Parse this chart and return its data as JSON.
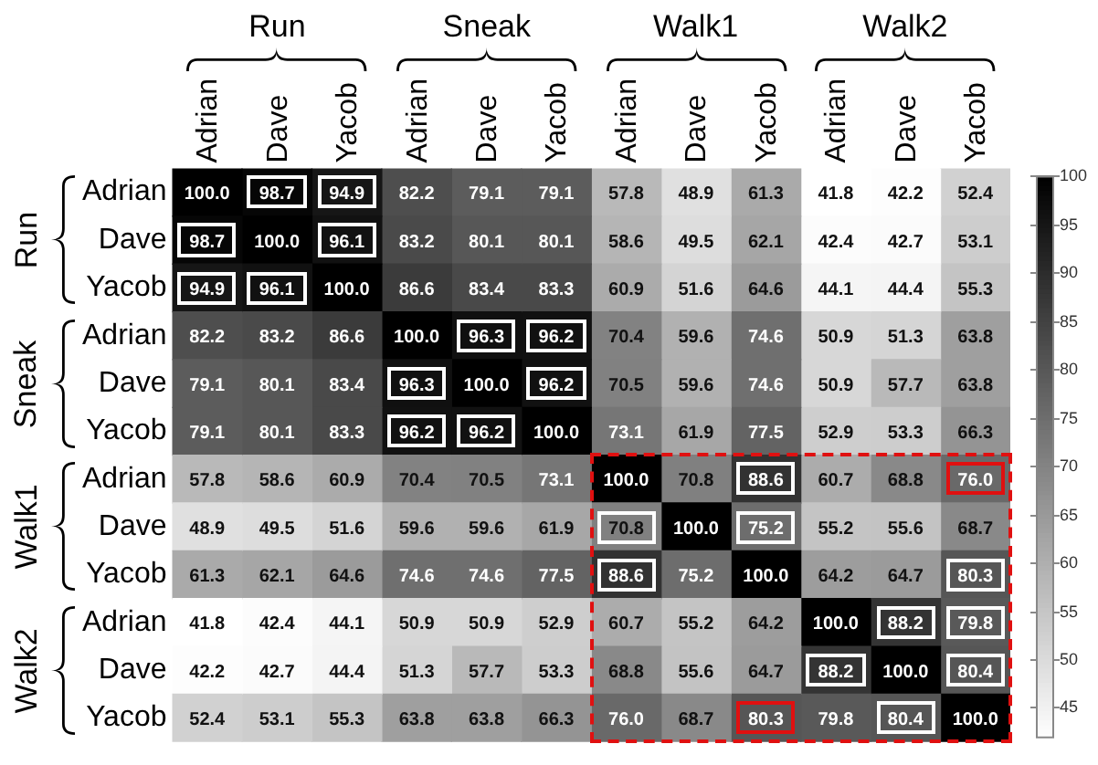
{
  "chart_data": {
    "type": "heatmap",
    "categories": [
      "Adrian",
      "Dave",
      "Yacob",
      "Adrian",
      "Dave",
      "Yacob",
      "Adrian",
      "Dave",
      "Yacob",
      "Adrian",
      "Dave",
      "Yacob"
    ],
    "y_categories": [
      "Adrian",
      "Dave",
      "Yacob",
      "Adrian",
      "Dave",
      "Yacob",
      "Adrian",
      "Dave",
      "Yacob",
      "Adrian",
      "Dave",
      "Yacob"
    ],
    "cells": [
      [
        100.0,
        98.7,
        94.9,
        82.2,
        79.1,
        79.1,
        57.8,
        48.9,
        61.3,
        41.8,
        42.2,
        52.4
      ],
      [
        98.7,
        100.0,
        96.1,
        83.2,
        80.1,
        80.1,
        58.6,
        49.5,
        62.1,
        42.4,
        42.7,
        53.1
      ],
      [
        94.9,
        96.1,
        100.0,
        86.6,
        83.4,
        83.3,
        60.9,
        51.6,
        64.6,
        44.1,
        44.4,
        55.3
      ],
      [
        82.2,
        83.2,
        86.6,
        100.0,
        96.3,
        96.2,
        70.4,
        59.6,
        74.6,
        50.9,
        51.3,
        63.8
      ],
      [
        79.1,
        80.1,
        83.4,
        96.3,
        100.0,
        96.2,
        70.5,
        59.6,
        74.6,
        50.9,
        57.7,
        63.8
      ],
      [
        79.1,
        80.1,
        83.3,
        96.2,
        96.2,
        100.0,
        73.1,
        61.9,
        77.5,
        52.9,
        53.3,
        66.3
      ],
      [
        57.8,
        58.6,
        60.9,
        70.4,
        70.5,
        73.1,
        100.0,
        70.8,
        88.6,
        60.7,
        68.8,
        76.0
      ],
      [
        48.9,
        49.5,
        51.6,
        59.6,
        59.6,
        61.9,
        70.8,
        100.0,
        75.2,
        55.2,
        55.6,
        68.7
      ],
      [
        61.3,
        62.1,
        64.6,
        74.6,
        74.6,
        77.5,
        88.6,
        75.2,
        100.0,
        64.2,
        64.7,
        80.3
      ],
      [
        41.8,
        42.4,
        44.1,
        50.9,
        50.9,
        52.9,
        60.7,
        55.2,
        64.2,
        100.0,
        88.2,
        79.8
      ],
      [
        42.2,
        42.7,
        44.4,
        51.3,
        57.7,
        53.3,
        68.8,
        55.6,
        64.7,
        88.2,
        100.0,
        80.4
      ],
      [
        52.4,
        53.1,
        55.3,
        63.8,
        63.8,
        66.3,
        76.0,
        68.7,
        80.3,
        79.8,
        80.4,
        100.0
      ]
    ],
    "cell_labels": [
      [
        "100.0",
        "98.7",
        "94.9",
        "82.2",
        "79.1",
        "79.1",
        "57.8",
        "48.9",
        "61.3",
        "41.8",
        "42.2",
        "52.4"
      ],
      [
        "98.7",
        "100.0",
        "96.1",
        "83.2",
        "80.1",
        "80.1",
        "58.6",
        "49.5",
        "62.1",
        "42.4",
        "42.7",
        "53.1"
      ],
      [
        "94.9",
        "96.1",
        "100.0",
        "86.6",
        "83.4",
        "83.3",
        "60.9",
        "51.6",
        "64.6",
        "44.1",
        "44.4",
        "55.3"
      ],
      [
        "82.2",
        "83.2",
        "86.6",
        "100.0",
        "96.3",
        "96.2",
        "70.4",
        "59.6",
        "74.6",
        "50.9",
        "51.3",
        "63.8"
      ],
      [
        "79.1",
        "80.1",
        "83.4",
        "96.3",
        "100.0",
        "96.2",
        "70.5",
        "59.6",
        "74.6",
        "50.9",
        "57.7",
        "63.8"
      ],
      [
        "79.1",
        "80.1",
        "83.3",
        "96.2",
        "96.2",
        "100.0",
        "73.1",
        "61.9",
        "77.5",
        "52.9",
        "53.3",
        "66.3"
      ],
      [
        "57.8",
        "58.6",
        "60.9",
        "70.4",
        "70.5",
        "73.1",
        "100.0",
        "70.8",
        "88.6",
        "60.7",
        "68.8",
        "76.0"
      ],
      [
        "48.9",
        "49.5",
        "51.6",
        "59.6",
        "59.6",
        "61.9",
        "70.8",
        "100.0",
        "75.2",
        "55.2",
        "55.6",
        "68.7"
      ],
      [
        "61.3",
        "62.1",
        "64.6",
        "74.6",
        "74.6",
        "77.5",
        "88.6",
        "75.2",
        "100.0",
        "64.2",
        "64.7",
        "80.3"
      ],
      [
        "41.8",
        "42.4",
        "44.1",
        "50.9",
        "50.9",
        "52.9",
        "60.7",
        "55.2",
        "64.2",
        "100.0",
        "88.2",
        "79.8"
      ],
      [
        "42.2",
        "42.7",
        "44.4",
        "51.3",
        "57.7",
        "53.3",
        "68.8",
        "55.6",
        "64.7",
        "88.2",
        "100.0",
        "80.4"
      ],
      [
        "52.4",
        "53.1",
        "55.3",
        "63.8",
        "63.8",
        "66.3",
        "76.0",
        "68.7",
        "80.3",
        "79.8",
        "80.4",
        "100.0"
      ]
    ],
    "clim": [
      41.8,
      100
    ],
    "cticks": [
      45,
      50,
      55,
      60,
      65,
      70,
      75,
      80,
      85,
      90,
      95,
      100
    ],
    "data_labels": true,
    "annotations": [
      "Run",
      "Sneak",
      "Walk1",
      "Walk2",
      "Run",
      "Sneak",
      "Walk1",
      "Walk2"
    ]
  }
}
